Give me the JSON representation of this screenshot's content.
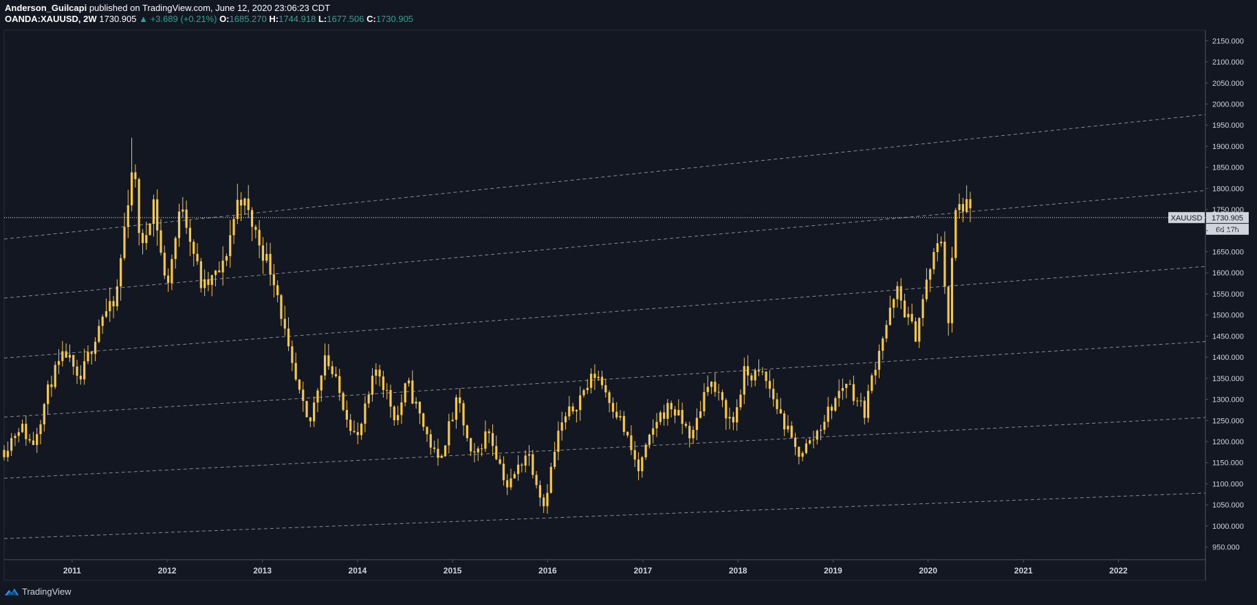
{
  "header": {
    "author": "Anderson_Guilcapi",
    "published": "published on TradingView.com, June 12, 2020 23:06:23 CDT",
    "symbol": "OANDA:XAUUSD, 2W",
    "price": "1730.905",
    "change": "▲ +3.689 (+0.21%)",
    "open_label": "O:",
    "open": "1685.270",
    "high_label": "H:",
    "high": "1744.918",
    "low_label": "L:",
    "low": "1677.506",
    "close_label": "C:",
    "close": "1730.905"
  },
  "footer": {
    "brand": "TradingView"
  },
  "colors": {
    "background": "#131722",
    "candle_up": "#f7c948",
    "candle_down": "#f7c948",
    "axis_text": "#d1d4dc",
    "trendline": "#b2b5be"
  },
  "chart_data": {
    "type": "candlestick",
    "symbol": "XAUUSD",
    "interval": "2W",
    "x_range": [
      "2010-04-15",
      "2022-12-01"
    ],
    "y_range": [
      920,
      2175
    ],
    "x_ticks": [
      "2011",
      "2012",
      "2013",
      "2014",
      "2015",
      "2016",
      "2017",
      "2018",
      "2019",
      "2020",
      "2021",
      "2022"
    ],
    "y_ticks": [
      "950.000",
      "1000.000",
      "1050.000",
      "1100.000",
      "1150.000",
      "1200.000",
      "1250.000",
      "1300.000",
      "1350.000",
      "1400.000",
      "1450.000",
      "1500.000",
      "1550.000",
      "1600.000",
      "1650.000",
      "1700.000",
      "1750.000",
      "1800.000",
      "1850.000",
      "1900.000",
      "1950.000",
      "2000.000",
      "2050.000",
      "2100.000",
      "2150.000"
    ],
    "last_price": 1730.905,
    "last_price_label": "XAUUSD",
    "last_price_text": "1730.905",
    "countdown_text": "6d 17h",
    "anchors": [
      [
        "2010-04-15",
        1180
      ],
      [
        "2010-06-15",
        1240
      ],
      [
        "2010-08-01",
        1190
      ],
      [
        "2010-10-15",
        1350
      ],
      [
        "2010-12-10",
        1410
      ],
      [
        "2011-01-25",
        1330
      ],
      [
        "2011-04-25",
        1500
      ],
      [
        "2011-06-15",
        1520
      ],
      [
        "2011-08-22",
        1870
      ],
      [
        "2011-09-25",
        1640
      ],
      [
        "2011-11-08",
        1780
      ],
      [
        "2011-12-28",
        1560
      ],
      [
        "2012-02-28",
        1770
      ],
      [
        "2012-05-15",
        1560
      ],
      [
        "2012-08-01",
        1610
      ],
      [
        "2012-10-05",
        1790
      ],
      [
        "2012-12-28",
        1660
      ],
      [
        "2013-02-20",
        1580
      ],
      [
        "2013-04-16",
        1390
      ],
      [
        "2013-06-28",
        1230
      ],
      [
        "2013-08-28",
        1410
      ],
      [
        "2013-12-30",
        1200
      ],
      [
        "2014-03-17",
        1380
      ],
      [
        "2014-05-30",
        1250
      ],
      [
        "2014-07-10",
        1340
      ],
      [
        "2014-11-05",
        1150
      ],
      [
        "2015-01-22",
        1300
      ],
      [
        "2015-03-17",
        1150
      ],
      [
        "2015-05-18",
        1230
      ],
      [
        "2015-08-01",
        1090
      ],
      [
        "2015-10-15",
        1180
      ],
      [
        "2015-12-17",
        1050
      ],
      [
        "2016-02-15",
        1230
      ],
      [
        "2016-07-06",
        1365
      ],
      [
        "2016-10-07",
        1250
      ],
      [
        "2016-12-15",
        1130
      ],
      [
        "2017-02-25",
        1255
      ],
      [
        "2017-04-17",
        1285
      ],
      [
        "2017-07-10",
        1210
      ],
      [
        "2017-09-08",
        1350
      ],
      [
        "2017-12-12",
        1240
      ],
      [
        "2018-01-25",
        1360
      ],
      [
        "2018-04-11",
        1355
      ],
      [
        "2018-08-16",
        1170
      ],
      [
        "2018-10-10",
        1200
      ],
      [
        "2019-02-20",
        1345
      ],
      [
        "2019-05-01",
        1270
      ],
      [
        "2019-06-25",
        1420
      ],
      [
        "2019-09-04",
        1555
      ],
      [
        "2019-11-12",
        1450
      ],
      [
        "2020-01-08",
        1610
      ],
      [
        "2020-02-24",
        1690
      ],
      [
        "2020-03-16",
        1455
      ],
      [
        "2020-04-14",
        1740
      ],
      [
        "2020-05-18",
        1765
      ],
      [
        "2020-06-12",
        1730.905
      ]
    ],
    "extreme_wicks": [
      [
        "2011-08-22",
        1920
      ],
      [
        "2020-03-16",
        1451
      ],
      [
        "2015-12-17",
        1046
      ],
      [
        "2020-05-18",
        1765
      ]
    ],
    "trendlines": [
      {
        "x": [
          "2010-04-15",
          "2022-12-01"
        ],
        "y": [
          1680,
          1975
        ],
        "style": "dashed"
      },
      {
        "x": [
          "2010-04-15",
          "2022-12-01"
        ],
        "y": [
          1540,
          1795
        ],
        "style": "dashed"
      },
      {
        "x": [
          "2010-04-15",
          "2022-12-01"
        ],
        "y": [
          1398,
          1615
        ],
        "style": "dashed"
      },
      {
        "x": [
          "2010-04-15",
          "2022-12-01"
        ],
        "y": [
          1258,
          1437
        ],
        "style": "dashed"
      },
      {
        "x": [
          "2010-04-15",
          "2022-12-01"
        ],
        "y": [
          1113,
          1257
        ],
        "style": "dashed"
      },
      {
        "x": [
          "2010-04-15",
          "2022-12-01"
        ],
        "y": [
          970,
          1078
        ],
        "style": "dashed"
      }
    ]
  }
}
